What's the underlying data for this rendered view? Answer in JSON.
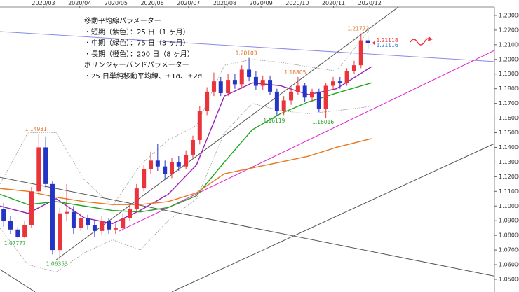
{
  "chart_data": {
    "type": "candlestick",
    "notes": [
      "移動平均線パラメーター",
      "・短期（紫色）：25 日（1 ヶ月）",
      "・中期（緑色）：75 日（3 ヶ月）",
      "・長期（橙色）：200 日（8 ヶ月）",
      "ボリンジャーバンドパラメーター",
      "・25 日単純移動平均線、±1σ、±2σ"
    ],
    "xlim": [
      1.8,
      15.44
    ],
    "xticks": [
      {
        "value": 3,
        "label": "2020/03"
      },
      {
        "value": 4,
        "label": "2020/04"
      },
      {
        "value": 5,
        "label": "2020/05"
      },
      {
        "value": 6,
        "label": "2020/06"
      },
      {
        "value": 7,
        "label": "2020/07"
      },
      {
        "value": 8,
        "label": "2020/08"
      },
      {
        "value": 9,
        "label": "2020/09"
      },
      {
        "value": 10,
        "label": "2020/10"
      },
      {
        "value": 11,
        "label": "2020/11"
      },
      {
        "value": 12,
        "label": "2020/12"
      }
    ],
    "ylim": [
      1.0414,
      1.2357
    ],
    "yticks": [
      {
        "value": 1.05,
        "label": "1.05000"
      },
      {
        "value": 1.06,
        "label": "1.06000"
      },
      {
        "value": 1.07,
        "label": "1.07000"
      },
      {
        "value": 1.08,
        "label": "1.08000"
      },
      {
        "value": 1.09,
        "label": "1.09000"
      },
      {
        "value": 1.1,
        "label": "1.10000"
      },
      {
        "value": 1.11,
        "label": "1.11000"
      },
      {
        "value": 1.12,
        "label": "1.12000"
      },
      {
        "value": 1.13,
        "label": "1.13000"
      },
      {
        "value": 1.14,
        "label": "1.14000"
      },
      {
        "value": 1.15,
        "label": "1.15000"
      },
      {
        "value": 1.16,
        "label": "1.16000"
      },
      {
        "value": 1.17,
        "label": "1.17000"
      },
      {
        "value": 1.18,
        "label": "1.18000"
      },
      {
        "value": 1.19,
        "label": "1.19000"
      },
      {
        "value": 1.2,
        "label": "1.20000"
      },
      {
        "value": 1.21,
        "label": "1.21000"
      },
      {
        "value": 1.22,
        "label": "1.22000"
      },
      {
        "value": 1.23,
        "label": "1.23000"
      }
    ],
    "grid": false,
    "candles": {
      "up_color": "#e8343a",
      "down_color": "#2434c4",
      "x": [
        1.9,
        2.09,
        2.29,
        2.48,
        2.67,
        2.87,
        3.06,
        3.25,
        3.45,
        3.64,
        3.83,
        4.03,
        4.22,
        4.41,
        4.61,
        4.8,
        4.99,
        5.19,
        5.38,
        5.57,
        5.77,
        5.96,
        6.15,
        6.35,
        6.54,
        6.73,
        6.93,
        7.12,
        7.31,
        7.51,
        7.7,
        7.89,
        8.09,
        8.28,
        8.47,
        8.67,
        8.86,
        9.05,
        9.25,
        9.44,
        9.63,
        9.83,
        10.02,
        10.21,
        10.41,
        10.6,
        10.79,
        10.99,
        11.18,
        11.37,
        11.57,
        11.76,
        11.95
      ],
      "open": [
        1.098,
        1.09,
        1.084,
        1.079,
        1.087,
        1.11,
        1.14,
        1.115,
        1.07,
        1.095,
        1.096,
        1.085,
        1.092,
        1.087,
        1.083,
        1.09,
        1.084,
        1.085,
        1.092,
        1.098,
        1.112,
        1.125,
        1.131,
        1.127,
        1.122,
        1.13,
        1.127,
        1.135,
        1.145,
        1.165,
        1.178,
        1.185,
        1.177,
        1.186,
        1.183,
        1.193,
        1.188,
        1.182,
        1.186,
        1.178,
        1.165,
        1.172,
        1.178,
        1.182,
        1.174,
        1.178,
        1.166,
        1.182,
        1.185,
        1.184,
        1.192,
        1.196,
        1.213
      ],
      "high": [
        1.102,
        1.093,
        1.086,
        1.09,
        1.113,
        1.14931,
        1.1475,
        1.117,
        1.099,
        1.115,
        1.1,
        1.095,
        1.094,
        1.09,
        1.093,
        1.092,
        1.088,
        1.095,
        1.101,
        1.115,
        1.128,
        1.137,
        1.1422,
        1.131,
        1.133,
        1.134,
        1.138,
        1.148,
        1.168,
        1.181,
        1.191,
        1.188,
        1.19,
        1.19,
        1.196,
        1.20103,
        1.192,
        1.189,
        1.189,
        1.18,
        1.175,
        1.181,
        1.18805,
        1.184,
        1.18,
        1.18,
        1.184,
        1.188,
        1.188,
        1.194,
        1.199,
        1.21773,
        1.2155
      ],
      "low": [
        1.086,
        1.081,
        1.07777,
        1.078,
        1.085,
        1.107,
        1.112,
        1.067,
        1.06353,
        1.09,
        1.081,
        1.083,
        1.084,
        1.079,
        1.08,
        1.081,
        1.081,
        1.083,
        1.09,
        1.096,
        1.11,
        1.122,
        1.124,
        1.118,
        1.119,
        1.124,
        1.125,
        1.133,
        1.142,
        1.162,
        1.175,
        1.175,
        1.175,
        1.18,
        1.18,
        1.185,
        1.179,
        1.179,
        1.176,
        1.16119,
        1.162,
        1.169,
        1.176,
        1.171,
        1.171,
        1.164,
        1.16016,
        1.179,
        1.18,
        1.182,
        1.19,
        1.194,
        1.207
      ],
      "close": [
        1.09,
        1.084,
        1.079,
        1.087,
        1.11,
        1.14,
        1.115,
        1.07,
        1.095,
        1.096,
        1.085,
        1.092,
        1.087,
        1.083,
        1.09,
        1.084,
        1.085,
        1.092,
        1.098,
        1.112,
        1.125,
        1.131,
        1.127,
        1.122,
        1.13,
        1.127,
        1.135,
        1.145,
        1.165,
        1.178,
        1.185,
        1.177,
        1.186,
        1.183,
        1.193,
        1.188,
        1.182,
        1.186,
        1.178,
        1.165,
        1.172,
        1.178,
        1.182,
        1.174,
        1.178,
        1.166,
        1.182,
        1.185,
        1.184,
        1.192,
        1.196,
        1.213,
        1.2112
      ]
    },
    "line_x": [
      1.8,
      2.57,
      3.35,
      4.12,
      4.9,
      5.67,
      6.44,
      7.22,
      7.99,
      8.76,
      9.54,
      10.31,
      11.08,
      12.05
    ],
    "series": [
      {
        "color": "#9a1fb8",
        "values": [
          1.1,
          1.095,
          1.105,
          1.092,
          1.088,
          1.097,
          1.108,
          1.128,
          1.175,
          1.184,
          1.182,
          1.176,
          1.18,
          1.195
        ]
      },
      {
        "color": "#1fa81f",
        "values": [
          1.108,
          1.101,
          1.103,
          1.1,
          1.097,
          1.096,
          1.099,
          1.107,
          1.13,
          1.152,
          1.163,
          1.171,
          1.177,
          1.184
        ]
      },
      {
        "color": "#e8781e",
        "values": [
          1.112,
          1.11,
          1.106,
          1.103,
          1.101,
          1.101,
          1.103,
          1.109,
          1.122,
          1.126,
          1.13,
          1.134,
          1.14,
          1.146
        ]
      },
      {
        "color": "#999999",
        "dashed": true,
        "values": [
          1.115,
          1.15,
          1.15,
          1.118,
          1.1,
          1.128,
          1.145,
          1.155,
          1.196,
          1.2,
          1.198,
          1.195,
          1.192,
          1.222
        ]
      },
      {
        "color": "#999999",
        "dashed": true,
        "values": [
          1.085,
          1.06,
          1.055,
          1.068,
          1.077,
          1.07,
          1.09,
          1.105,
          1.15,
          1.17,
          1.165,
          1.163,
          1.165,
          1.168
        ]
      }
    ],
    "trendlines": [
      {
        "color": "#8a8ae8",
        "x": [
          1.8,
          15.44
        ],
        "values": [
          1.219,
          1.1985
        ]
      },
      {
        "color": "#555555",
        "x": [
          3.35,
          12.92
        ],
        "values": [
          1.0633,
          1.2381
        ]
      },
      {
        "color": "#555555",
        "x": [
          1.8,
          15.44
        ],
        "values": [
          1.1196,
          1.0522
        ]
      },
      {
        "color": "#555555",
        "x": [
          1.8,
          2.77
        ],
        "values": [
          1.0567,
          1.0414
        ]
      },
      {
        "color": "#555555",
        "x": [
          6.54,
          15.44
        ],
        "values": [
          1.0414,
          1.1426
        ]
      },
      {
        "color": "#e020d0",
        "x": [
          5.09,
          15.44
        ],
        "values": [
          1.0829,
          1.2061
        ]
      }
    ],
    "annotations": [
      {
        "x": 2.87,
        "value": 1.14931,
        "color": "#e07020"
      },
      {
        "x": 2.29,
        "value": 1.07777,
        "color": "#28a028"
      },
      {
        "x": 3.45,
        "value": 1.06353,
        "color": "#28a028"
      },
      {
        "x": 8.67,
        "value": 1.20103,
        "color": "#e07020"
      },
      {
        "x": 10.02,
        "value": 1.18805,
        "color": "#e07020"
      },
      {
        "x": 9.44,
        "value": 1.16119,
        "color": "#28a028"
      },
      {
        "x": 10.79,
        "value": 1.16016,
        "color": "#28a028"
      },
      {
        "x": 11.76,
        "value": 1.21773,
        "color": "#e07020"
      }
    ],
    "last_price": [
      {
        "value": 1.21118,
        "color": "#e8343a"
      },
      {
        "value": 1.21116,
        "color": "#2a7ad8"
      }
    ]
  }
}
